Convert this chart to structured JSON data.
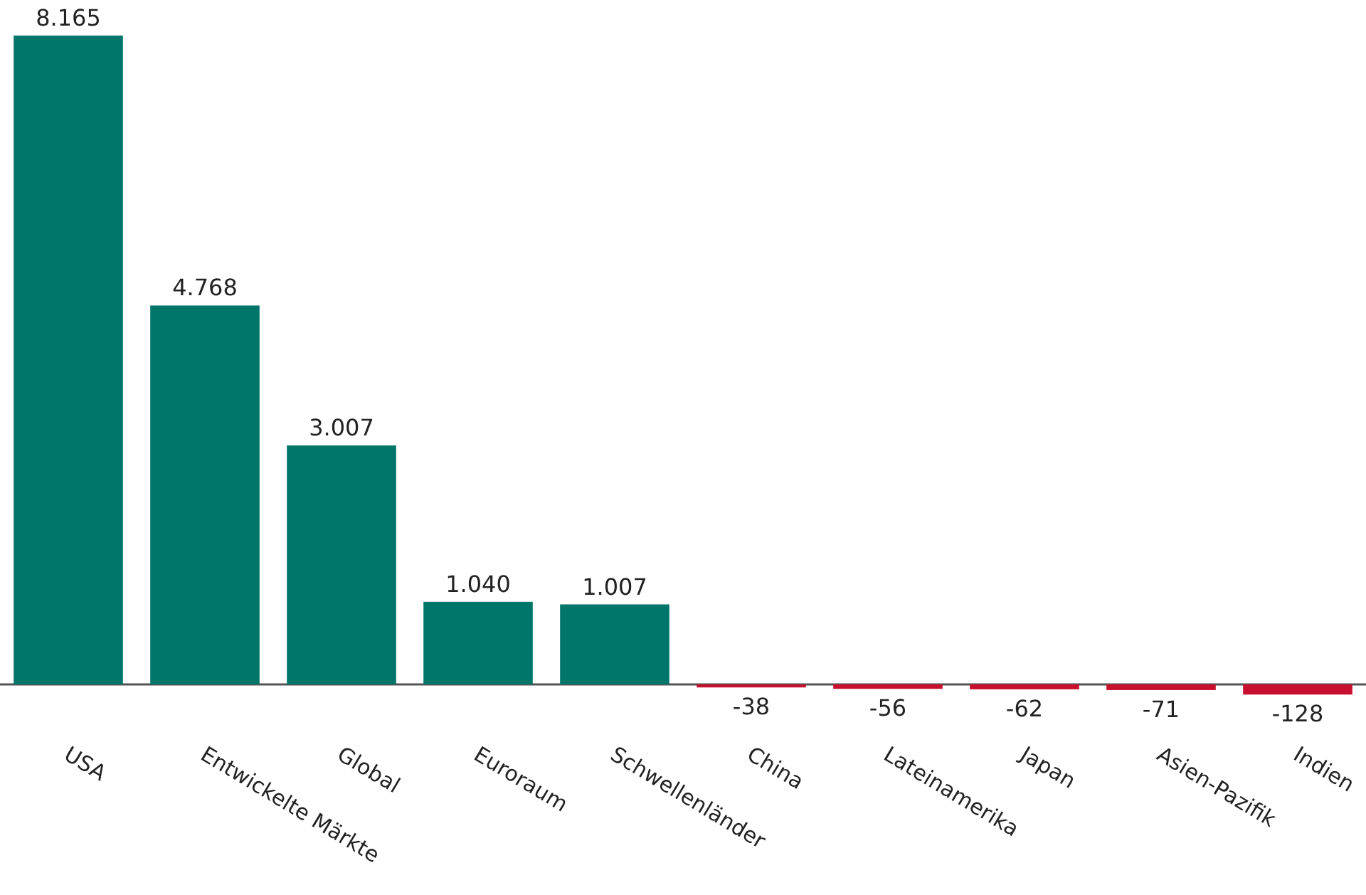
{
  "chart_data": {
    "type": "bar",
    "categories": [
      "USA",
      "Entwickelte Märkte",
      "Global",
      "Euroraum",
      "Schwellenländer",
      "China",
      "Lateinamerika",
      "Japan",
      "Asien-Pazifik",
      "Indien"
    ],
    "values": [
      8165,
      4768,
      3007,
      1040,
      1007,
      -38,
      -56,
      -62,
      -71,
      -128
    ],
    "colors": [
      "#00756a",
      "#00756a",
      "#00756a",
      "#00756a",
      "#00756a",
      "#c8102e",
      "#c8102e",
      "#c8102e",
      "#c8102e",
      "#c8102e"
    ],
    "value_labels": [
      "8.165",
      "4.768",
      "3.007",
      "1.040",
      "1.007",
      "-38",
      "-56",
      "-62",
      "-71",
      "-128"
    ]
  }
}
